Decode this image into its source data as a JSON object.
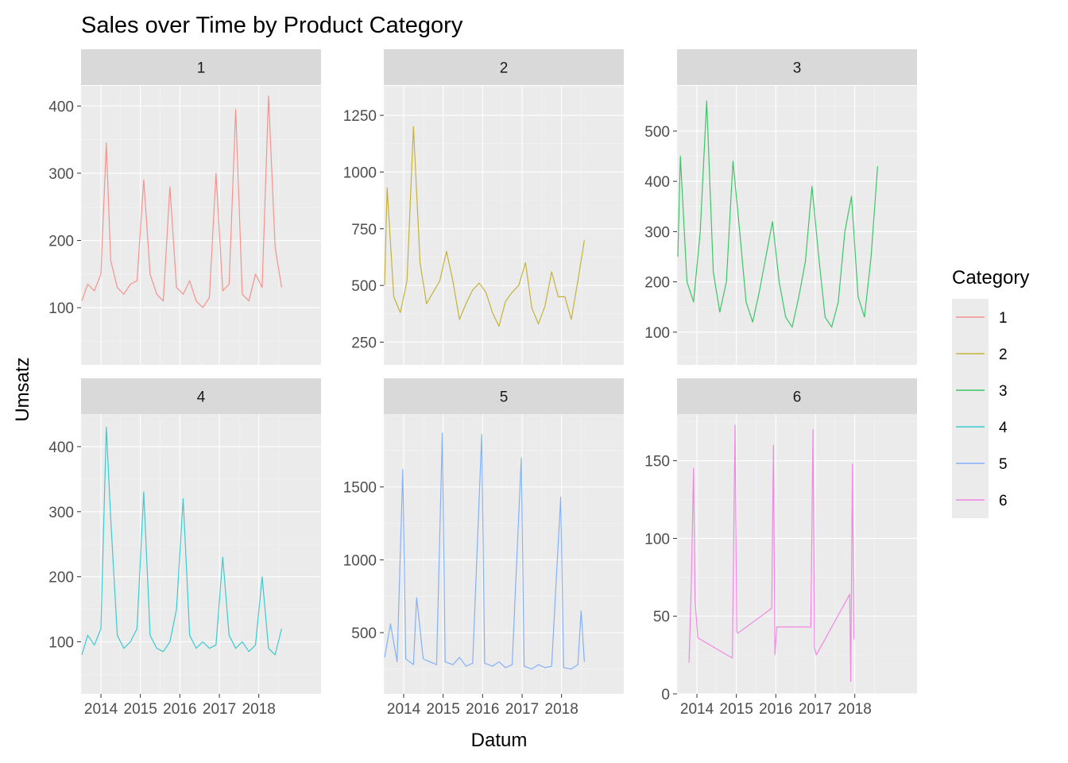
{
  "chart_data": {
    "type": "line",
    "title": "Sales over Time by Product Category",
    "xlabel": "Datum",
    "ylabel": "Umsatz",
    "x_type": "date",
    "xlim": [
      "2013-07-01",
      "2019-07-31"
    ],
    "x_ticks": [
      "2014-01-01",
      "2015-01-01",
      "2016-01-01",
      "2017-01-01",
      "2018-01-01"
    ],
    "x_tick_labels": [
      "2014",
      "2015",
      "2016",
      "2017",
      "2018"
    ],
    "facet_rows": 2,
    "facet_cols": 3,
    "shared_x": true,
    "series_opacity": 0.75,
    "grid": true,
    "legend": {
      "title": "Category",
      "position": "right",
      "entries": [
        {
          "label": "1",
          "color": "#F8766D"
        },
        {
          "label": "2",
          "color": "#B79F00"
        },
        {
          "label": "3",
          "color": "#00BA38"
        },
        {
          "label": "4",
          "color": "#00BFC4"
        },
        {
          "label": "5",
          "color": "#619CFF"
        },
        {
          "label": "6",
          "color": "#F564E3"
        }
      ]
    },
    "facets": [
      {
        "label": "1",
        "color": "#F8766D",
        "ylim": [
          15,
          430
        ],
        "y_ticks": [
          100,
          200,
          300,
          400
        ],
        "y_tick_labels": [
          "100",
          "200",
          "300",
          "400"
        ],
        "series": {
          "x": [
            "2013-07-08",
            "2013-09-01",
            "2013-11-01",
            "2014-01-01",
            "2014-02-20",
            "2014-04-01",
            "2014-06-01",
            "2014-08-01",
            "2014-10-01",
            "2014-12-01",
            "2015-02-01",
            "2015-04-01",
            "2015-06-01",
            "2015-08-01",
            "2015-10-01",
            "2015-12-01",
            "2016-02-01",
            "2016-04-01",
            "2016-06-01",
            "2016-08-01",
            "2016-10-01",
            "2016-12-01",
            "2017-02-01",
            "2017-04-01",
            "2017-06-01",
            "2017-08-01",
            "2017-10-01",
            "2017-12-01",
            "2018-02-01",
            "2018-04-01",
            "2018-06-01",
            "2018-07-31"
          ],
          "y": [
            110,
            135,
            125,
            150,
            345,
            170,
            130,
            120,
            135,
            140,
            290,
            150,
            120,
            110,
            280,
            130,
            120,
            140,
            110,
            100,
            115,
            300,
            125,
            135,
            395,
            120,
            110,
            150,
            130,
            415,
            190,
            130
          ]
        }
      },
      {
        "label": "2",
        "color": "#B79F00",
        "ylim": [
          150,
          1380
        ],
        "y_ticks": [
          250,
          500,
          750,
          1000,
          1250
        ],
        "y_tick_labels": [
          "250",
          "500",
          "750",
          "1000",
          "1250"
        ],
        "series": {
          "x": [
            "2013-07-08",
            "2013-08-01",
            "2013-10-01",
            "2013-12-01",
            "2014-02-01",
            "2014-04-01",
            "2014-06-01",
            "2014-08-01",
            "2014-10-01",
            "2014-12-01",
            "2015-02-01",
            "2015-04-01",
            "2015-06-01",
            "2015-08-01",
            "2015-10-01",
            "2015-12-01",
            "2016-02-01",
            "2016-04-01",
            "2016-06-01",
            "2016-08-01",
            "2016-10-01",
            "2016-12-01",
            "2017-02-01",
            "2017-04-01",
            "2017-06-01",
            "2017-08-01",
            "2017-10-01",
            "2017-12-01",
            "2018-02-01",
            "2018-04-01",
            "2018-06-01",
            "2018-07-31"
          ],
          "y": [
            500,
            930,
            450,
            380,
            520,
            1200,
            600,
            420,
            470,
            520,
            650,
            520,
            350,
            420,
            480,
            510,
            470,
            380,
            320,
            430,
            470,
            500,
            600,
            400,
            330,
            410,
            560,
            450,
            450,
            350,
            520,
            700
          ]
        }
      },
      {
        "label": "3",
        "color": "#00BA38",
        "ylim": [
          35,
          590
        ],
        "y_ticks": [
          100,
          200,
          300,
          400,
          500
        ],
        "y_tick_labels": [
          "100",
          "200",
          "300",
          "400",
          "500"
        ],
        "series": {
          "x": [
            "2013-07-08",
            "2013-08-01",
            "2013-10-01",
            "2013-12-01",
            "2014-02-01",
            "2014-04-01",
            "2014-06-01",
            "2014-08-01",
            "2014-10-01",
            "2014-12-01",
            "2015-02-01",
            "2015-04-01",
            "2015-06-01",
            "2015-08-01",
            "2015-10-01",
            "2015-12-01",
            "2016-02-01",
            "2016-04-01",
            "2016-06-01",
            "2016-08-01",
            "2016-10-01",
            "2016-12-01",
            "2017-02-01",
            "2017-04-01",
            "2017-06-01",
            "2017-08-01",
            "2017-10-01",
            "2017-12-01",
            "2018-02-01",
            "2018-04-01",
            "2018-06-01",
            "2018-07-31"
          ],
          "y": [
            250,
            450,
            200,
            160,
            300,
            560,
            220,
            140,
            200,
            440,
            300,
            160,
            120,
            180,
            250,
            320,
            200,
            130,
            110,
            170,
            240,
            390,
            250,
            130,
            110,
            160,
            300,
            370,
            170,
            130,
            250,
            430
          ]
        }
      },
      {
        "label": "4",
        "color": "#00BFC4",
        "ylim": [
          20,
          450
        ],
        "y_ticks": [
          100,
          200,
          300,
          400
        ],
        "y_tick_labels": [
          "100",
          "200",
          "300",
          "400"
        ],
        "series": {
          "x": [
            "2013-07-08",
            "2013-09-01",
            "2013-11-01",
            "2014-01-01",
            "2014-02-20",
            "2014-04-01",
            "2014-06-01",
            "2014-08-01",
            "2014-10-01",
            "2014-12-01",
            "2015-02-01",
            "2015-04-01",
            "2015-06-01",
            "2015-08-01",
            "2015-10-01",
            "2015-12-01",
            "2016-02-01",
            "2016-04-01",
            "2016-06-01",
            "2016-08-01",
            "2016-10-01",
            "2016-12-01",
            "2017-02-01",
            "2017-04-01",
            "2017-06-01",
            "2017-08-01",
            "2017-10-01",
            "2017-12-01",
            "2018-02-01",
            "2018-04-01",
            "2018-06-01",
            "2018-07-31"
          ],
          "y": [
            80,
            110,
            95,
            120,
            430,
            290,
            110,
            90,
            100,
            120,
            330,
            110,
            90,
            85,
            100,
            150,
            320,
            110,
            90,
            100,
            90,
            95,
            230,
            110,
            90,
            100,
            85,
            95,
            200,
            90,
            80,
            120
          ]
        }
      },
      {
        "label": "5",
        "color": "#619CFF",
        "ylim": [
          80,
          2000
        ],
        "y_ticks": [
          500,
          1000,
          1500
        ],
        "y_tick_labels": [
          "500",
          "1000",
          "1500"
        ],
        "series": {
          "x": [
            "2013-07-08",
            "2013-09-01",
            "2013-11-01",
            "2013-12-24",
            "2014-01-20",
            "2014-04-01",
            "2014-05-01",
            "2014-07-01",
            "2014-09-01",
            "2014-11-01",
            "2014-12-24",
            "2015-01-20",
            "2015-04-01",
            "2015-06-01",
            "2015-08-01",
            "2015-10-01",
            "2015-12-24",
            "2016-01-20",
            "2016-04-01",
            "2016-06-01",
            "2016-08-01",
            "2016-10-01",
            "2016-12-24",
            "2017-01-20",
            "2017-04-01",
            "2017-06-01",
            "2017-08-01",
            "2017-10-01",
            "2017-12-24",
            "2018-01-20",
            "2018-04-01",
            "2018-06-01",
            "2018-07-01",
            "2018-07-31"
          ],
          "y": [
            330,
            560,
            300,
            1620,
            320,
            280,
            740,
            320,
            300,
            280,
            1870,
            300,
            280,
            330,
            270,
            290,
            1860,
            290,
            270,
            300,
            260,
            280,
            1700,
            270,
            250,
            280,
            260,
            270,
            1430,
            260,
            250,
            280,
            650,
            300
          ]
        }
      },
      {
        "label": "6",
        "color": "#F564E3",
        "ylim": [
          0,
          180
        ],
        "y_ticks": [
          0,
          50,
          100,
          150
        ],
        "y_tick_labels": [
          "0",
          "50",
          "100",
          "150"
        ],
        "series": {
          "x": [
            "2013-10-20",
            "2013-11-10",
            "2013-12-01",
            "2013-12-15",
            "2014-01-10",
            "2014-11-25",
            "2014-12-20",
            "2015-01-05",
            "2015-01-15",
            "2015-11-25",
            "2015-12-10",
            "2015-12-24",
            "2016-01-10",
            "2016-11-20",
            "2016-12-10",
            "2016-12-24",
            "2017-01-10",
            "2017-11-15",
            "2017-11-25",
            "2017-12-10",
            "2017-12-24"
          ],
          "y": [
            20,
            70,
            145,
            60,
            36,
            23,
            173,
            40,
            39,
            55,
            160,
            25,
            43,
            43,
            170,
            30,
            25,
            64,
            8,
            148,
            35
          ]
        }
      }
    ]
  }
}
